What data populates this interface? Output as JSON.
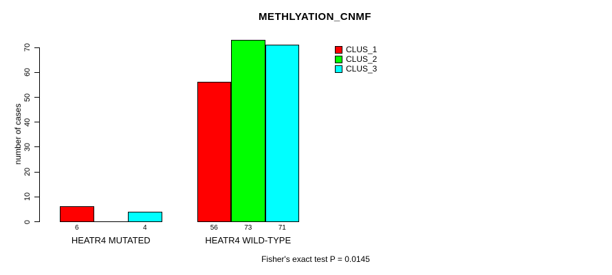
{
  "chart_data": {
    "type": "bar",
    "title": "METHLYATION_CNMF",
    "ylabel": "number of cases",
    "xlabel": "",
    "categories": [
      "HEATR4 MUTATED",
      "HEATR4 WILD-TYPE"
    ],
    "series": [
      {
        "name": "CLUS_1",
        "color": "#ff0000",
        "values": [
          6,
          56
        ]
      },
      {
        "name": "CLUS_2",
        "color": "#00ff00",
        "values": [
          0,
          73
        ]
      },
      {
        "name": "CLUS_3",
        "color": "#00ffff",
        "values": [
          4,
          71
        ]
      }
    ],
    "bar_value_labels": [
      [
        "6",
        "",
        "4"
      ],
      [
        "56",
        "73",
        "71"
      ]
    ],
    "ylim": [
      0,
      70
    ],
    "yticks": [
      0,
      10,
      20,
      30,
      40,
      50,
      60,
      70
    ],
    "grid": false,
    "legend_position": "top-right-inside",
    "annotation": "Fisher's exact test P = 0.0145"
  }
}
